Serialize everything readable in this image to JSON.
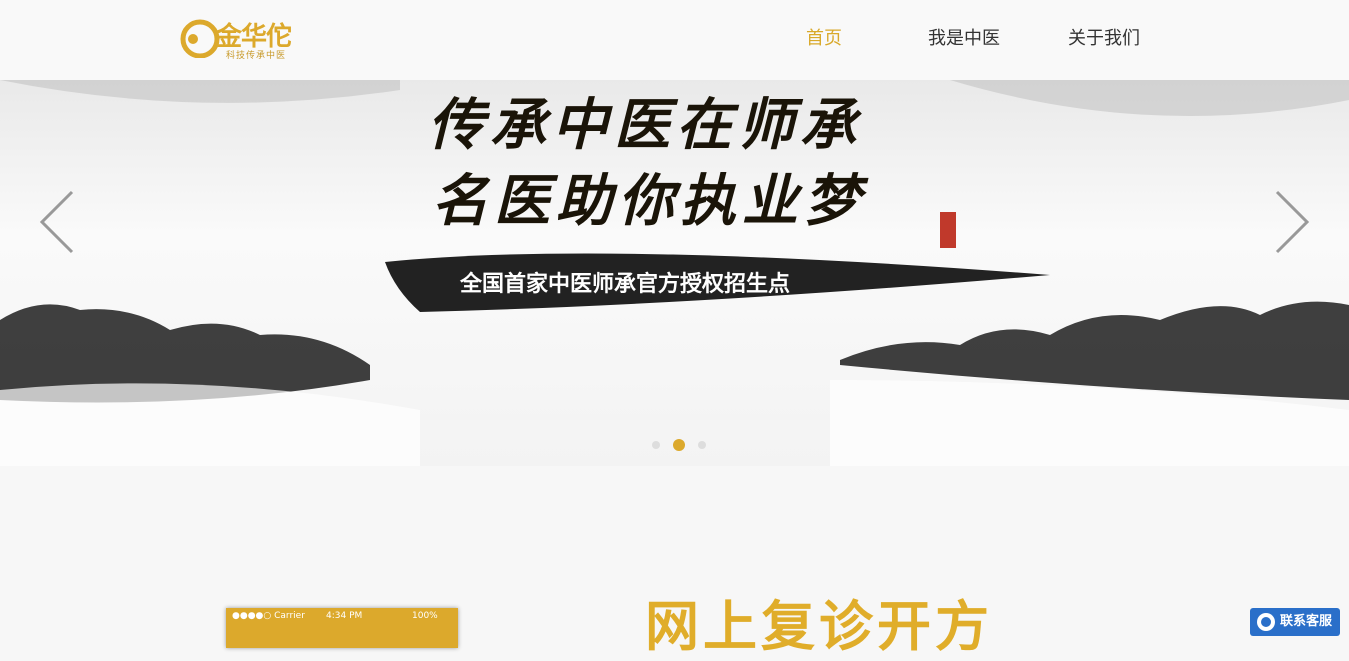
{
  "header": {
    "logo": {
      "name": "金华佗",
      "slogan": "科技传承中医"
    },
    "nav": [
      "首页",
      "我是中医",
      "关于我们"
    ]
  },
  "banner": {
    "line1": "传承中医在师承",
    "line2": "名医助你执业梦",
    "tagline": "全国首家中医师承官方授权招生点"
  },
  "phone": {
    "carrier": "●●●●○ Carrier",
    "time": "4:34 PM",
    "battery": "100%"
  },
  "section": {
    "title": "网上复诊开方"
  },
  "contact": "联系客服"
}
